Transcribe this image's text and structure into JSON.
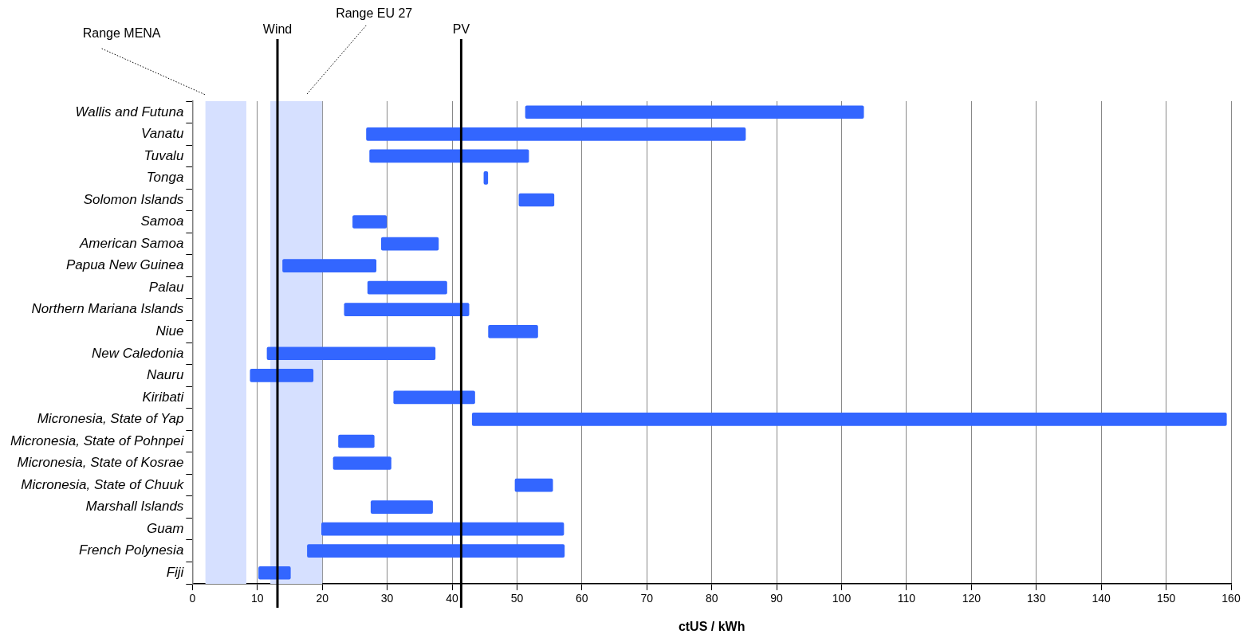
{
  "chart_data": {
    "type": "bar",
    "orientation": "horizontal",
    "xlabel": "ctUS / kWh",
    "categories": [
      "Wallis and Futuna",
      "Vanatu",
      "Tuvalu",
      "Tonga",
      "Solomon Islands",
      "Samoa",
      "American Samoa",
      "Papua New Guinea",
      "Palau",
      "Northern Mariana Islands",
      "Niue",
      "New Caledonia",
      "Nauru",
      "Kiribati",
      "Micronesia, State of Yap",
      "Micronesia, State of Pohnpei",
      "Micronesia, State of Kosrae",
      "Micronesia, State of Chuuk",
      "Marshall Islands",
      "Guam",
      "French Polynesia",
      "Fiji"
    ],
    "base": [
      51.3,
      26.8,
      27.3,
      44.9,
      50.3,
      24.7,
      29.1,
      13.9,
      27.0,
      23.4,
      45.6,
      11.5,
      8.9,
      31.0,
      43.1,
      22.5,
      21.7,
      49.7,
      27.5,
      19.9,
      17.7,
      10.2
    ],
    "values": [
      52.1,
      58.4,
      24.5,
      0.6,
      5.4,
      5.2,
      8.8,
      14.4,
      12.2,
      19.2,
      7.6,
      25.9,
      9.7,
      12.5,
      116.2,
      5.5,
      8.9,
      5.8,
      9.5,
      37.3,
      39.6,
      4.9
    ],
    "color": "#3366ff",
    "xlim": [
      0,
      160
    ],
    "xticks": [
      0,
      10,
      20,
      30,
      40,
      50,
      60,
      70,
      80,
      90,
      100,
      110,
      120,
      130,
      140,
      150,
      160
    ],
    "grid": "x",
    "legend": false,
    "bands": [
      {
        "axis": "x",
        "from": 2.0,
        "to": 8.3,
        "label": "Range MENA",
        "color": "#d6e0ff"
      },
      {
        "axis": "x",
        "from": 12.0,
        "to": 20.0,
        "label": "Range EU 27",
        "color": "#d6e0ff"
      }
    ],
    "ref_lines": [
      {
        "axis": "x",
        "value": 13.1,
        "label": "Wind",
        "color": "#000000"
      },
      {
        "axis": "x",
        "value": 41.4,
        "label": "PV",
        "color": "#000000"
      }
    ]
  }
}
